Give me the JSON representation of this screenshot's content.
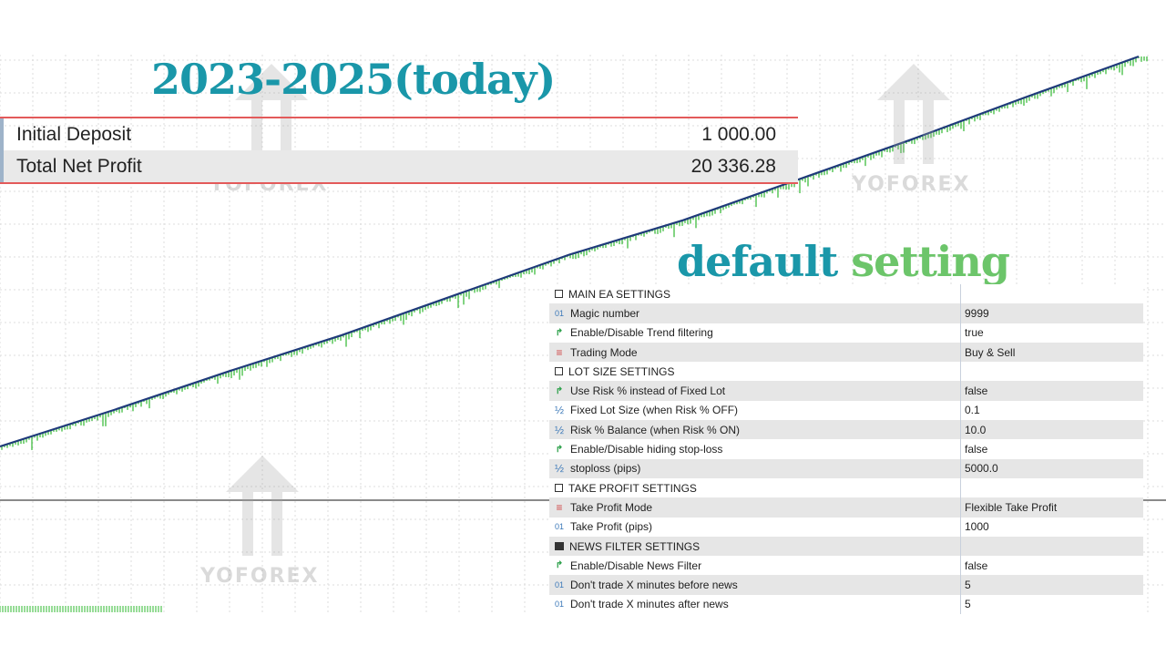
{
  "chart_data": {
    "type": "line",
    "title": "",
    "xlabel": "",
    "ylabel": "",
    "grid": true,
    "series": [
      {
        "values_x": [
          0,
          10,
          20,
          30,
          40,
          50,
          60,
          70,
          80,
          90,
          100
        ],
        "values_y": [
          1000,
          2900,
          4900,
          6800,
          8900,
          11000,
          12800,
          14900,
          17000,
          19200,
          21336.28
        ]
      }
    ],
    "colors": {
      "balance": "#1f3a7a",
      "equity_drawdown": "#2fb82f",
      "grid": "#d8d8d8"
    }
  },
  "heading": "2023-2025(today)",
  "subheading": {
    "part1": "default",
    "part2": "setting"
  },
  "summary": [
    {
      "label": "Initial Deposit",
      "value": "1 000.00"
    },
    {
      "label": "Total Net Profit",
      "value": "20 336.28"
    }
  ],
  "parameters": [
    {
      "icon": "group",
      "name": "MAIN EA SETTINGS",
      "value": ""
    },
    {
      "icon": "int",
      "name": "Magic number",
      "value": "9999"
    },
    {
      "icon": "bool",
      "name": "Enable/Disable Trend filtering",
      "value": "true"
    },
    {
      "icon": "enum",
      "name": "Trading Mode",
      "value": "Buy & Sell"
    },
    {
      "icon": "group",
      "name": "LOT SIZE SETTINGS",
      "value": ""
    },
    {
      "icon": "bool",
      "name": "Use Risk % instead of Fixed Lot",
      "value": "false"
    },
    {
      "icon": "double",
      "name": "Fixed Lot Size (when Risk % OFF)",
      "value": "0.1"
    },
    {
      "icon": "double",
      "name": "Risk % Balance (when Risk % ON)",
      "value": "10.0"
    },
    {
      "icon": "bool",
      "name": "Enable/Disable hiding stop-loss",
      "value": "false"
    },
    {
      "icon": "double",
      "name": "stoploss (pips)",
      "value": "5000.0"
    },
    {
      "icon": "group",
      "name": "TAKE PROFIT SETTINGS",
      "value": ""
    },
    {
      "icon": "enum",
      "name": "Take Profit Mode",
      "value": "Flexible Take Profit"
    },
    {
      "icon": "int",
      "name": "Take Profit (pips)",
      "value": "1000"
    },
    {
      "icon": "group-filled",
      "name": "NEWS FILTER SETTINGS",
      "value": ""
    },
    {
      "icon": "bool",
      "name": "Enable/Disable News Filter",
      "value": "false"
    },
    {
      "icon": "int",
      "name": "Don't trade X minutes before news",
      "value": "5"
    },
    {
      "icon": "int",
      "name": "Don't trade X minutes after news",
      "value": "5"
    }
  ],
  "watermark_text": "YOFOREX"
}
